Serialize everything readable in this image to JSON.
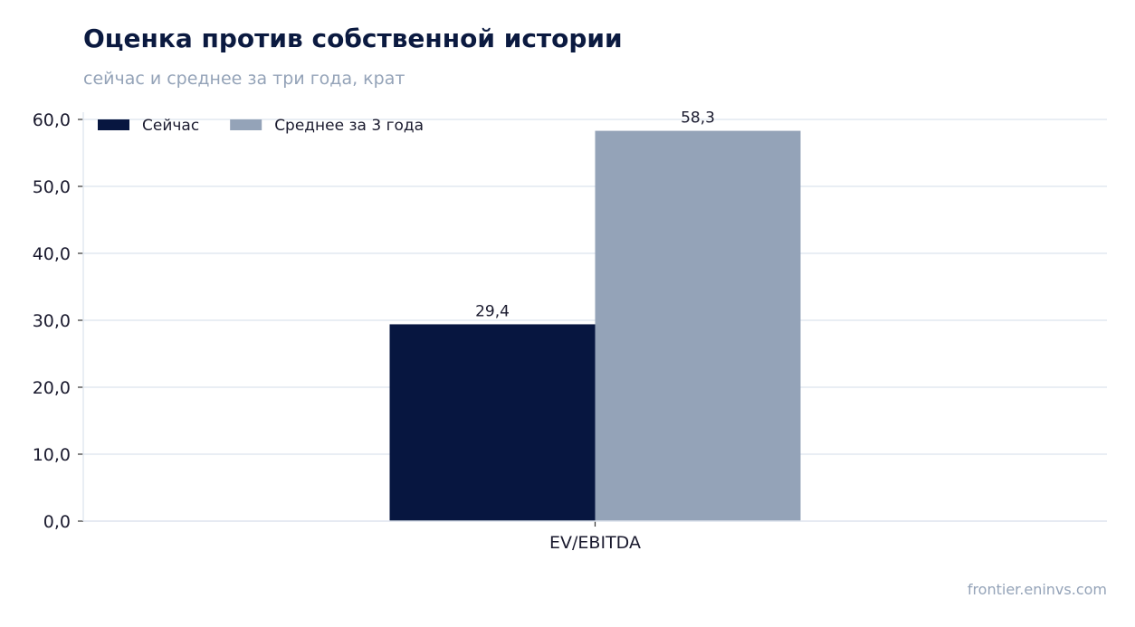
{
  "header": {
    "title": "Оценка против собственной истории",
    "subtitle": "сейчас и среднее за три года, крат"
  },
  "footer": {
    "source": "frontier.eninvs.com"
  },
  "chart_data": {
    "type": "bar",
    "title": "Оценка против собственной истории",
    "subtitle": "сейчас и среднее за три года, крат",
    "xlabel": "",
    "ylabel": "",
    "categories": [
      "EV/EBITDA"
    ],
    "series": [
      {
        "name": "Сейчас",
        "values": [
          29.4
        ],
        "value_labels": [
          "29,4"
        ],
        "color": "#071640"
      },
      {
        "name": "Среднее за 3 года",
        "values": [
          58.3
        ],
        "value_labels": [
          "58,3"
        ],
        "color": "#94a3b8"
      }
    ],
    "ylim": [
      0,
      60
    ],
    "yticks": [
      0,
      10,
      20,
      30,
      40,
      50,
      60
    ],
    "ytick_labels": [
      "0,0",
      "10,0",
      "20,0",
      "30,0",
      "40,0",
      "50,0",
      "60,0"
    ],
    "grid": true,
    "legend_position": "top-left"
  },
  "colors": {
    "title": "#0b1a40",
    "muted": "#94a3b8",
    "grid": "#e2e8f0",
    "axis_text": "#1a1a2e"
  }
}
